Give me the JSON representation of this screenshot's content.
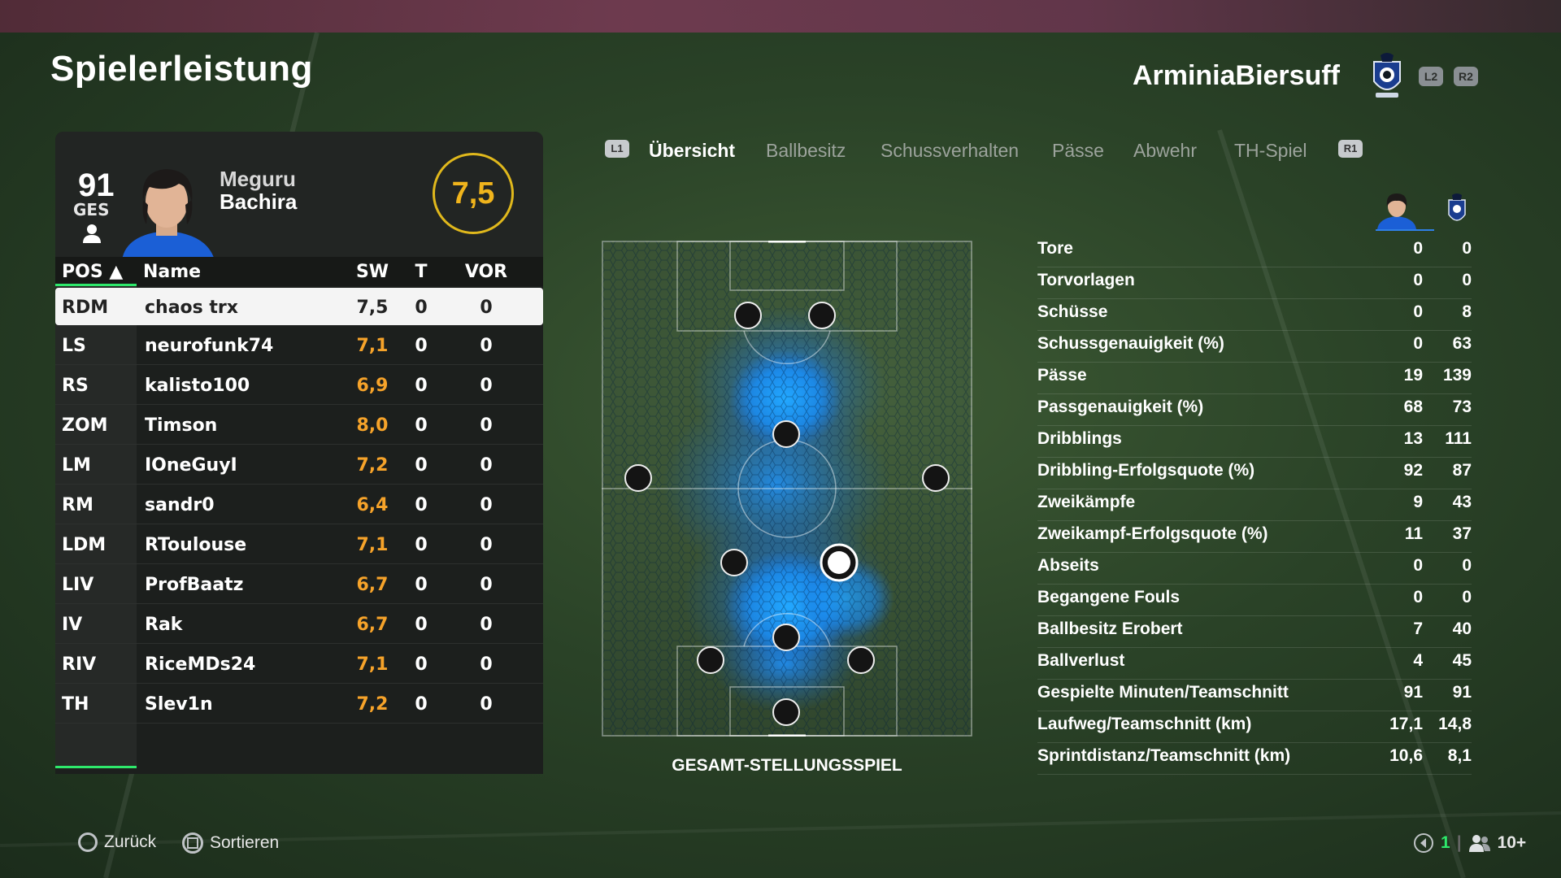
{
  "page": {
    "title": "Spielerleistung"
  },
  "team": {
    "name": "ArminiaBiersuff",
    "btn_l2": "L2",
    "btn_r2": "R2"
  },
  "player": {
    "ovr": "91",
    "ovr_label": "GES",
    "first_name": "Meguru",
    "last_name": "Bachira",
    "rating": "7,5"
  },
  "table": {
    "headers": {
      "pos": "POS ▲",
      "name": "Name",
      "sw": "SW",
      "t": "T",
      "vor": "VOR"
    },
    "rows": [
      {
        "pos": "RDM",
        "name": "chaos trx",
        "sw": "7,5",
        "t": "0",
        "vor": "0"
      },
      {
        "pos": "LS",
        "name": "neurofunk74",
        "sw": "7,1",
        "t": "0",
        "vor": "0"
      },
      {
        "pos": "RS",
        "name": "kalisto100",
        "sw": "6,9",
        "t": "0",
        "vor": "0"
      },
      {
        "pos": "ZOM",
        "name": "Timson",
        "sw": "8,0",
        "t": "0",
        "vor": "0"
      },
      {
        "pos": "LM",
        "name": "IOneGuyI",
        "sw": "7,2",
        "t": "0",
        "vor": "0"
      },
      {
        "pos": "RM",
        "name": "sandr0",
        "sw": "6,4",
        "t": "0",
        "vor": "0"
      },
      {
        "pos": "LDM",
        "name": "RToulouse",
        "sw": "7,1",
        "t": "0",
        "vor": "0"
      },
      {
        "pos": "LIV",
        "name": "ProfBaatz",
        "sw": "6,7",
        "t": "0",
        "vor": "0"
      },
      {
        "pos": "IV",
        "name": "Rak",
        "sw": "6,7",
        "t": "0",
        "vor": "0"
      },
      {
        "pos": "RIV",
        "name": "RiceMDs24",
        "sw": "7,1",
        "t": "0",
        "vor": "0"
      },
      {
        "pos": "TH",
        "name": "Slev1n",
        "sw": "7,2",
        "t": "0",
        "vor": "0"
      }
    ]
  },
  "tabs": {
    "l1": "L1",
    "r1": "R1",
    "items": [
      "Übersicht",
      "Ballbesitz",
      "Schussverhalten",
      "Pässe",
      "Abwehr",
      "TH-Spiel"
    ]
  },
  "heatmap": {
    "label": "GESAMT-STELLUNGSSPIEL"
  },
  "stats": [
    {
      "label": "Tore",
      "player": "0",
      "team": "0"
    },
    {
      "label": "Torvorlagen",
      "player": "0",
      "team": "0"
    },
    {
      "label": "Schüsse",
      "player": "0",
      "team": "8"
    },
    {
      "label": "Schussgenauigkeit (%)",
      "player": "0",
      "team": "63"
    },
    {
      "label": "Pässe",
      "player": "19",
      "team": "139"
    },
    {
      "label": "Passgenauigkeit (%)",
      "player": "68",
      "team": "73"
    },
    {
      "label": "Dribblings",
      "player": "13",
      "team": "111"
    },
    {
      "label": "Dribbling-Erfolgsquote (%)",
      "player": "92",
      "team": "87"
    },
    {
      "label": "Zweikämpfe",
      "player": "9",
      "team": "43"
    },
    {
      "label": "Zweikampf-Erfolgsquote (%)",
      "player": "11",
      "team": "37"
    },
    {
      "label": "Abseits",
      "player": "0",
      "team": "0"
    },
    {
      "label": "Begangene Fouls",
      "player": "0",
      "team": "0"
    },
    {
      "label": "Ballbesitz Erobert",
      "player": "7",
      "team": "40"
    },
    {
      "label": "Ballverlust",
      "player": "4",
      "team": "45"
    },
    {
      "label": "Gespielte Minuten/Teamschnitt",
      "player": "91",
      "team": "91"
    },
    {
      "label": "Laufweg/Teamschnitt (km)",
      "player": "17,1",
      "team": "14,8"
    },
    {
      "label": "Sprintdistanz/Teamschnitt (km)",
      "player": "10,6",
      "team": "8,1"
    }
  ],
  "footer": {
    "back": "Zurück",
    "sort": "Sortieren",
    "count": "1",
    "players": "10+"
  },
  "colors": {
    "accent_green": "#2ee86b",
    "rating_yellow": "#f0b41c",
    "sw_orange": "#f6a32a",
    "heat_blue": "#1e90ff"
  }
}
